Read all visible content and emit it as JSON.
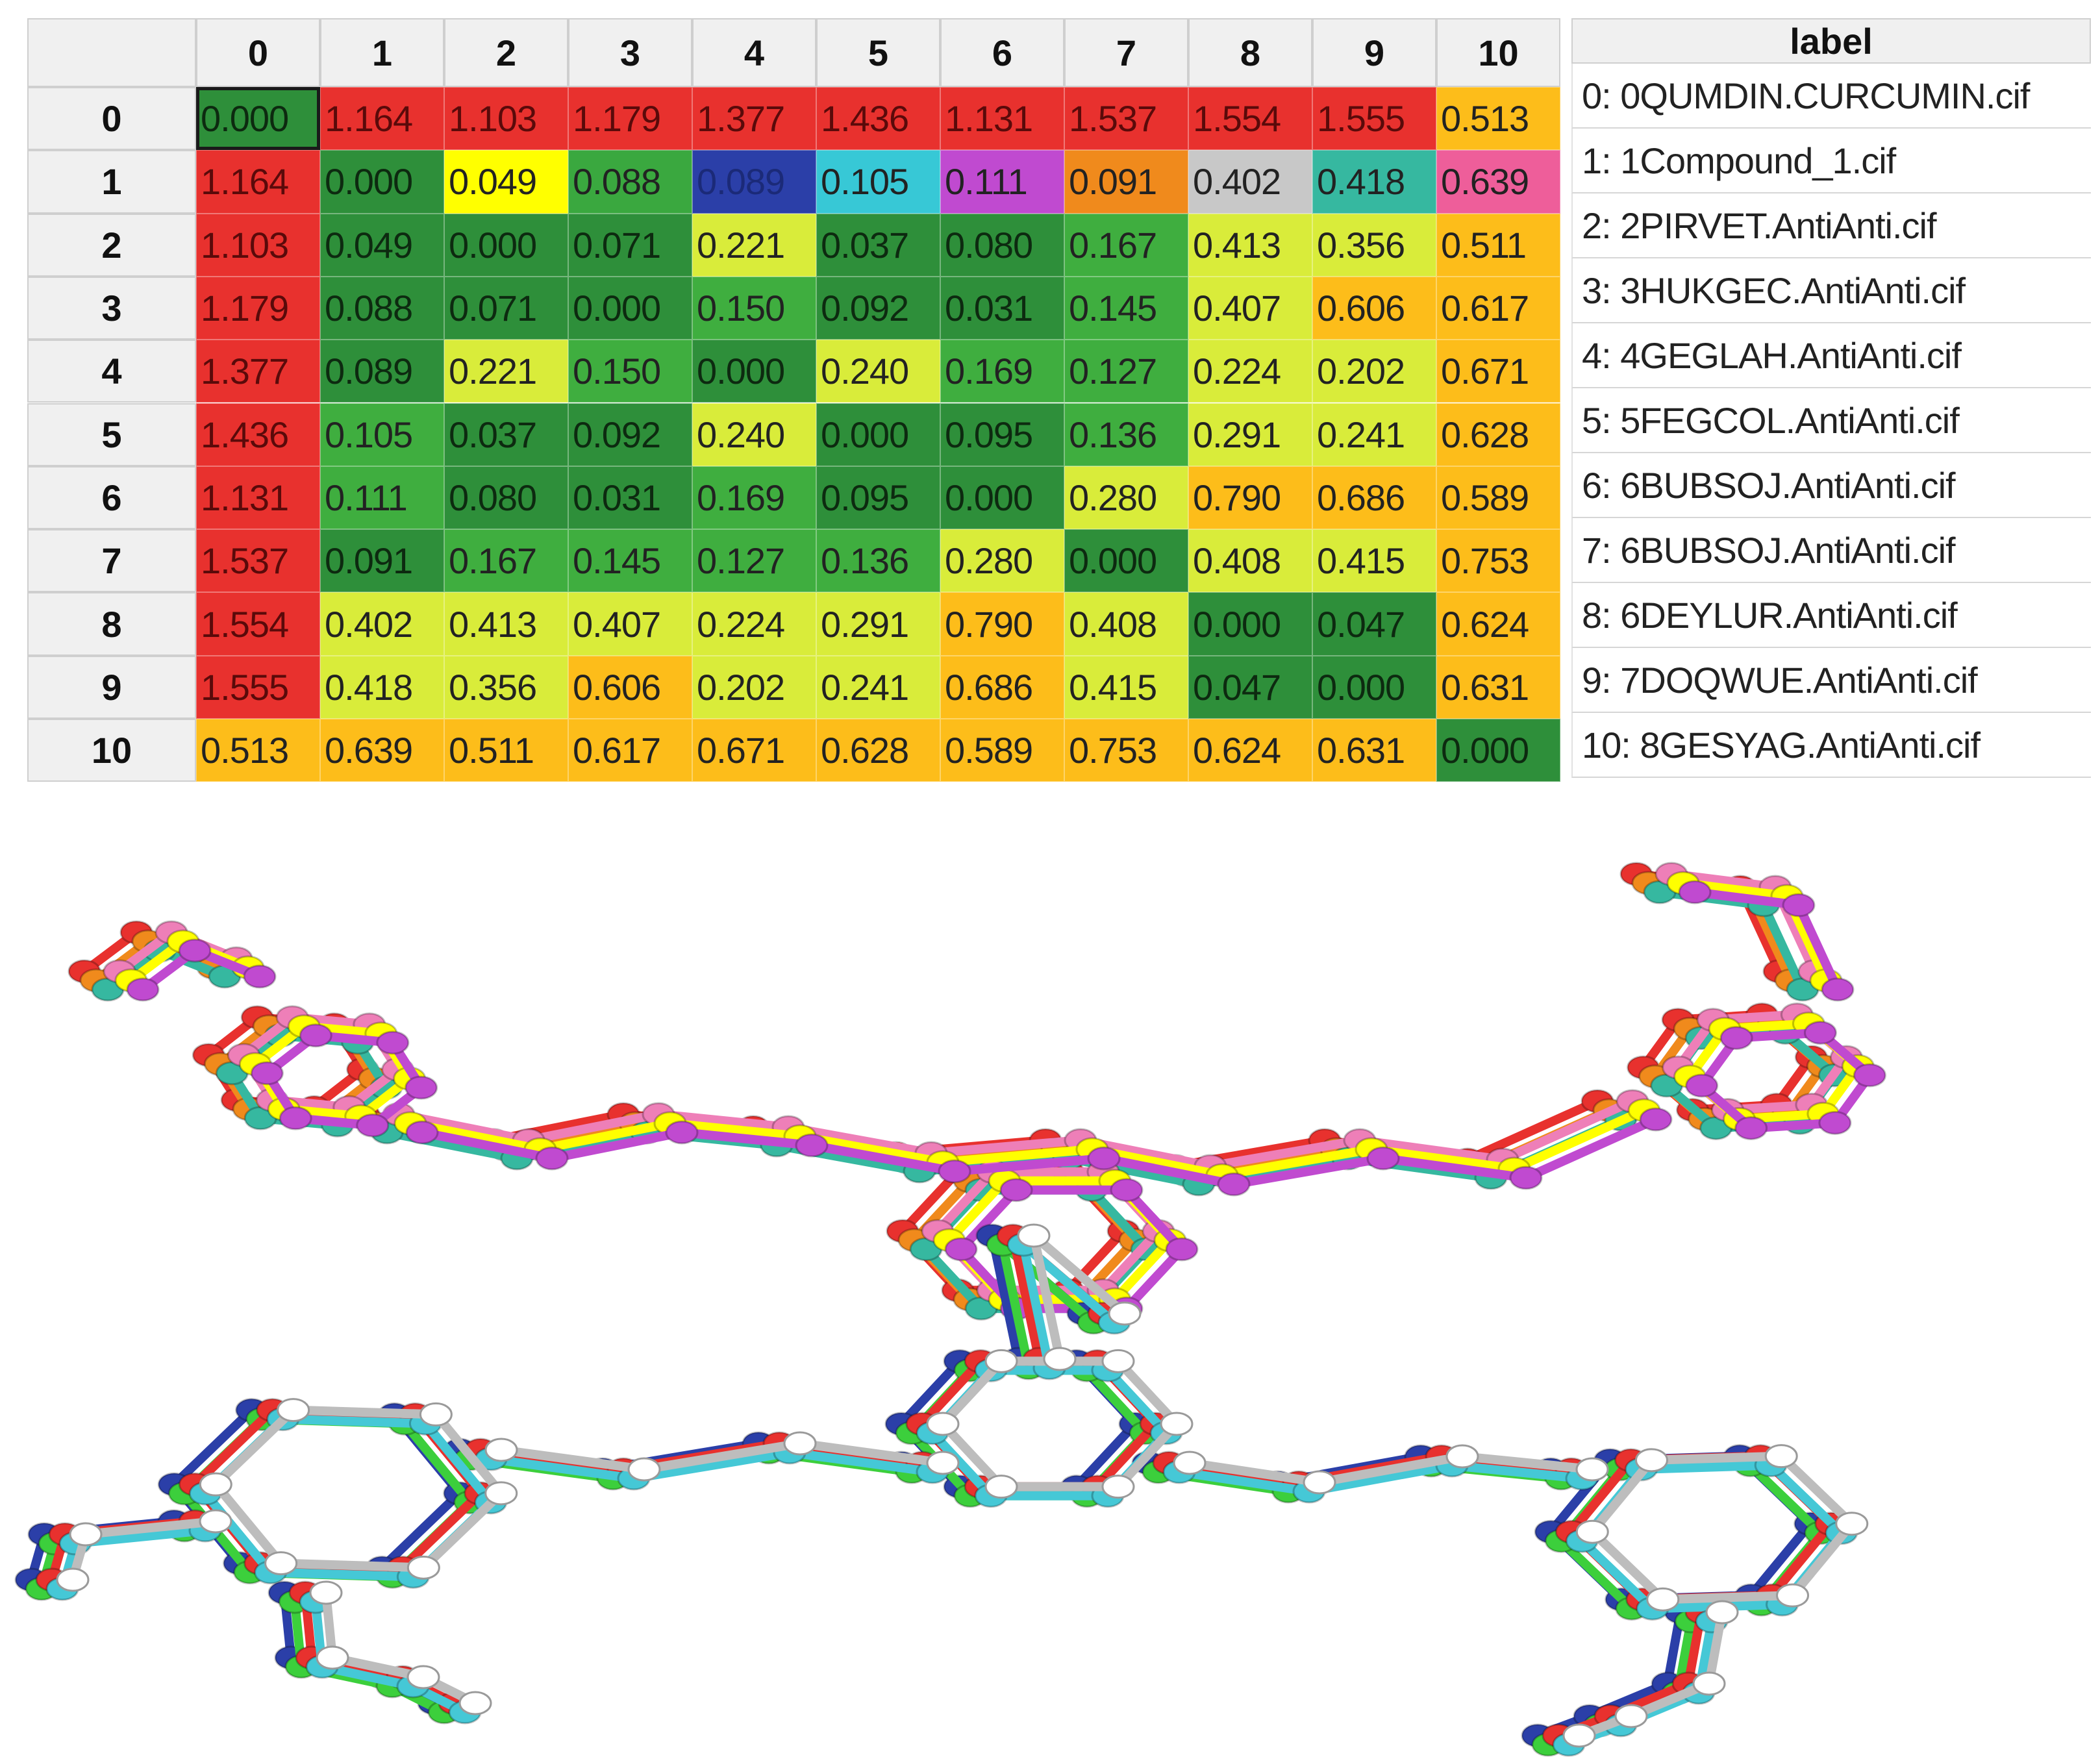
{
  "chart_data": {
    "type": "heatmap",
    "columns": [
      "0",
      "1",
      "2",
      "3",
      "4",
      "5",
      "6",
      "7",
      "8",
      "9",
      "10"
    ],
    "rows": [
      "0",
      "1",
      "2",
      "3",
      "4",
      "5",
      "6",
      "7",
      "8",
      "9",
      "10"
    ],
    "values": [
      [
        "0.000",
        "1.164",
        "1.103",
        "1.179",
        "1.377",
        "1.436",
        "1.131",
        "1.537",
        "1.554",
        "1.555",
        "0.513"
      ],
      [
        "1.164",
        "0.000",
        "0.049",
        "0.088",
        "0.089",
        "0.105",
        "0.111",
        "0.091",
        "0.402",
        "0.418",
        "0.639"
      ],
      [
        "1.103",
        "0.049",
        "0.000",
        "0.071",
        "0.221",
        "0.037",
        "0.080",
        "0.167",
        "0.413",
        "0.356",
        "0.511"
      ],
      [
        "1.179",
        "0.088",
        "0.071",
        "0.000",
        "0.150",
        "0.092",
        "0.031",
        "0.145",
        "0.407",
        "0.606",
        "0.617"
      ],
      [
        "1.377",
        "0.089",
        "0.221",
        "0.150",
        "0.000",
        "0.240",
        "0.169",
        "0.127",
        "0.224",
        "0.202",
        "0.671"
      ],
      [
        "1.436",
        "0.105",
        "0.037",
        "0.092",
        "0.240",
        "0.000",
        "0.095",
        "0.136",
        "0.291",
        "0.241",
        "0.628"
      ],
      [
        "1.131",
        "0.111",
        "0.080",
        "0.031",
        "0.169",
        "0.095",
        "0.000",
        "0.280",
        "0.790",
        "0.686",
        "0.589"
      ],
      [
        "1.537",
        "0.091",
        "0.167",
        "0.145",
        "0.127",
        "0.136",
        "0.280",
        "0.000",
        "0.408",
        "0.415",
        "0.753"
      ],
      [
        "1.554",
        "0.402",
        "0.413",
        "0.407",
        "0.224",
        "0.291",
        "0.790",
        "0.408",
        "0.000",
        "0.047",
        "0.624"
      ],
      [
        "1.555",
        "0.418",
        "0.356",
        "0.606",
        "0.202",
        "0.241",
        "0.686",
        "0.415",
        "0.047",
        "0.000",
        "0.631"
      ],
      [
        "0.513",
        "0.639",
        "0.511",
        "0.617",
        "0.671",
        "0.628",
        "0.589",
        "0.753",
        "0.624",
        "0.631",
        "0.000"
      ]
    ],
    "selected_cell": [
      0,
      0
    ],
    "row1_colors": [
      "#e8312e",
      "#2e8f3a",
      "#ffff00",
      "#3aa83f",
      "#2b3fa8",
      "#37c8d6",
      "#c04ad0",
      "#f08a1c",
      "#c8c8c8",
      "#36b8a0",
      "#ee5e9a"
    ],
    "color_legend": {
      "very_low": "#2e8f3a",
      "low": "#3fae3f",
      "medium": "#d9ec3a",
      "high": "#fdbd1a",
      "very_high": "#e8312e"
    }
  },
  "label_table": {
    "header": "label",
    "items": [
      "0: 0QUMDIN.CURCUMIN.cif",
      "1: 1Compound_1.cif",
      "2: 2PIRVET.AntiAnti.cif",
      "3: 3HUKGEC.AntiAnti.cif",
      "4: 4GEGLAH.AntiAnti.cif",
      "5: 5FEGCOL.AntiAnti.cif",
      "6: 6BUBSOJ.AntiAnti.cif",
      "7: 6BUBSOJ.AntiAnti.cif",
      "8: 6DEYLUR.AntiAnti.cif",
      "9: 7DOQWUE.AntiAnti.cif",
      "10: 8GESYAG.AntiAnti.cif"
    ]
  },
  "structure_overlay": {
    "upper_colors": [
      "#e8312e",
      "#f08a1c",
      "#36b8a0",
      "#ee7fb8",
      "#ffff00",
      "#c04ad0"
    ],
    "lower_colors": [
      "#2b3fa8",
      "#3ccf3c",
      "#e8312e",
      "#45c8d6",
      "#ffffff"
    ]
  }
}
